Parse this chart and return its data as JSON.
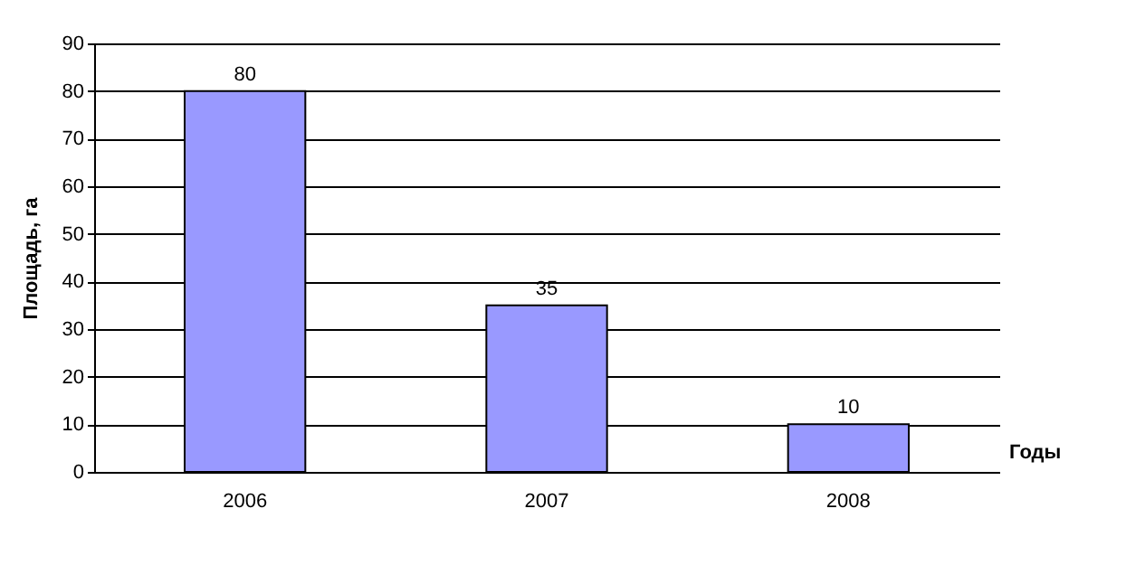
{
  "chart_data": {
    "type": "bar",
    "xlabel": "Годы",
    "ylabel": "Площадь, га",
    "categories": [
      "2006",
      "2007",
      "2008"
    ],
    "values": [
      80,
      35,
      10
    ],
    "color": "#9999ff",
    "ylim": [
      0,
      90
    ],
    "yticks": [
      0,
      10,
      20,
      30,
      40,
      50,
      60,
      70,
      80,
      90
    ],
    "grid": "y",
    "data_labels": true
  }
}
